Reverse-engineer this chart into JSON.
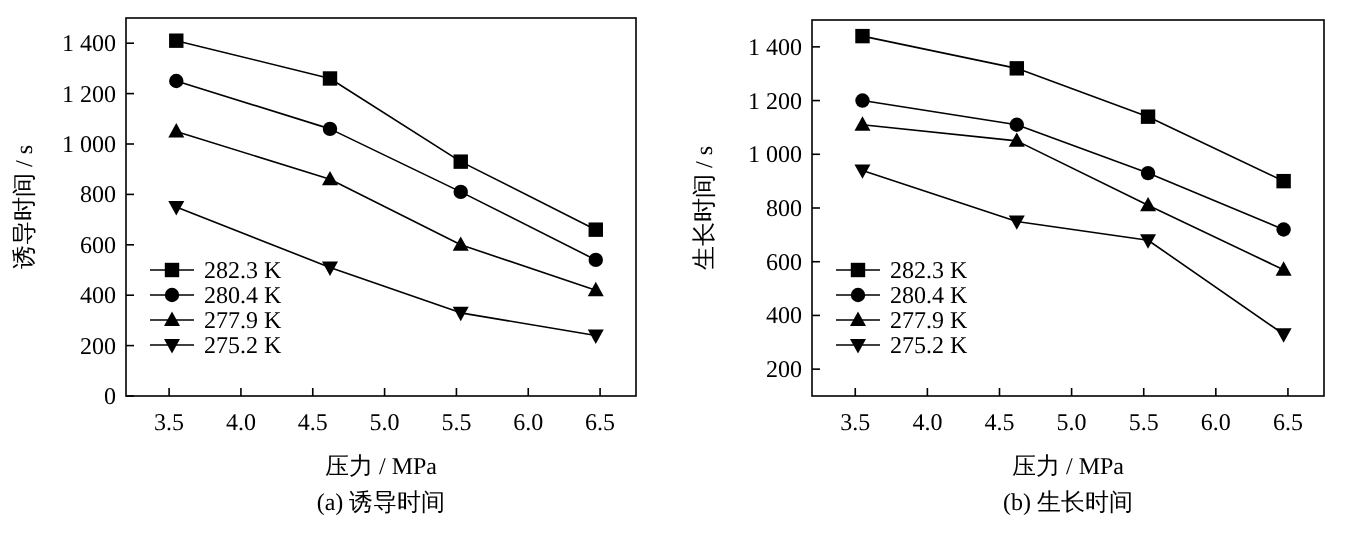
{
  "chart_data": [
    {
      "type": "line",
      "xlabel": "压力 / MPa",
      "ylabel": "诱导时间 / s",
      "annotations": [
        "(a) 诱导时间"
      ],
      "xlim": [
        3.2,
        6.75
      ],
      "xticks": [
        {
          "value": 3.5,
          "label": "3.5"
        },
        {
          "value": 4.0,
          "label": "4.0"
        },
        {
          "value": 4.5,
          "label": "4.5"
        },
        {
          "value": 5.0,
          "label": "5.0"
        },
        {
          "value": 5.5,
          "label": "5.5"
        },
        {
          "value": 6.0,
          "label": "6.0"
        },
        {
          "value": 6.5,
          "label": "6.5"
        }
      ],
      "ylim": [
        0,
        1500
      ],
      "yticks": [
        0,
        200,
        400,
        600,
        800,
        {
          "value": 1000,
          "label": "1 000"
        },
        {
          "value": 1200,
          "label": "1 200"
        },
        {
          "value": 1400,
          "label": "1 400"
        }
      ],
      "x": [
        3.55,
        4.62,
        5.53,
        6.47
      ],
      "legend": "bottom left",
      "grid": false,
      "series": [
        {
          "name": "282.3 K",
          "color": "#000000",
          "marker": "square",
          "values": [
            1410,
            1260,
            930,
            660
          ]
        },
        {
          "name": "280.4 K",
          "color": "#000000",
          "marker": "circle",
          "values": [
            1250,
            1060,
            810,
            540
          ]
        },
        {
          "name": "277.9 K",
          "color": "#000000",
          "marker": "triangle",
          "values": [
            1050,
            860,
            600,
            420
          ]
        },
        {
          "name": "275.2 K",
          "color": "#000000",
          "marker": "triangle-down",
          "values": [
            750,
            510,
            330,
            240
          ]
        }
      ]
    },
    {
      "type": "line",
      "xlabel": "压力 / MPa",
      "ylabel": "生长时间 / s",
      "annotations": [
        "(b) 生长时间"
      ],
      "xlim": [
        3.2,
        6.75
      ],
      "xticks": [
        {
          "value": 3.5,
          "label": "3.5"
        },
        {
          "value": 4.0,
          "label": "4.0"
        },
        {
          "value": 4.5,
          "label": "4.5"
        },
        {
          "value": 5.0,
          "label": "5.0"
        },
        {
          "value": 5.5,
          "label": "5.5"
        },
        {
          "value": 6.0,
          "label": "6.0"
        },
        {
          "value": 6.5,
          "label": "6.5"
        }
      ],
      "ylim": [
        100,
        1500
      ],
      "yticks": [
        200,
        400,
        600,
        800,
        {
          "value": 1000,
          "label": "1 000"
        },
        {
          "value": 1200,
          "label": "1 200"
        },
        {
          "value": 1400,
          "label": "1 400"
        }
      ],
      "x": [
        3.55,
        4.62,
        5.53,
        6.47
      ],
      "legend": "bottom left",
      "grid": false,
      "series": [
        {
          "name": "282.3 K",
          "color": "#000000",
          "marker": "square",
          "values": [
            1440,
            1320,
            1140,
            900
          ]
        },
        {
          "name": "280.4 K",
          "color": "#000000",
          "marker": "circle",
          "values": [
            1200,
            1110,
            930,
            720
          ]
        },
        {
          "name": "277.9 K",
          "color": "#000000",
          "marker": "triangle",
          "values": [
            1110,
            1050,
            810,
            570
          ]
        },
        {
          "name": "275.2 K",
          "color": "#000000",
          "marker": "triangle-down",
          "values": [
            940,
            750,
            680,
            330
          ]
        }
      ]
    }
  ]
}
